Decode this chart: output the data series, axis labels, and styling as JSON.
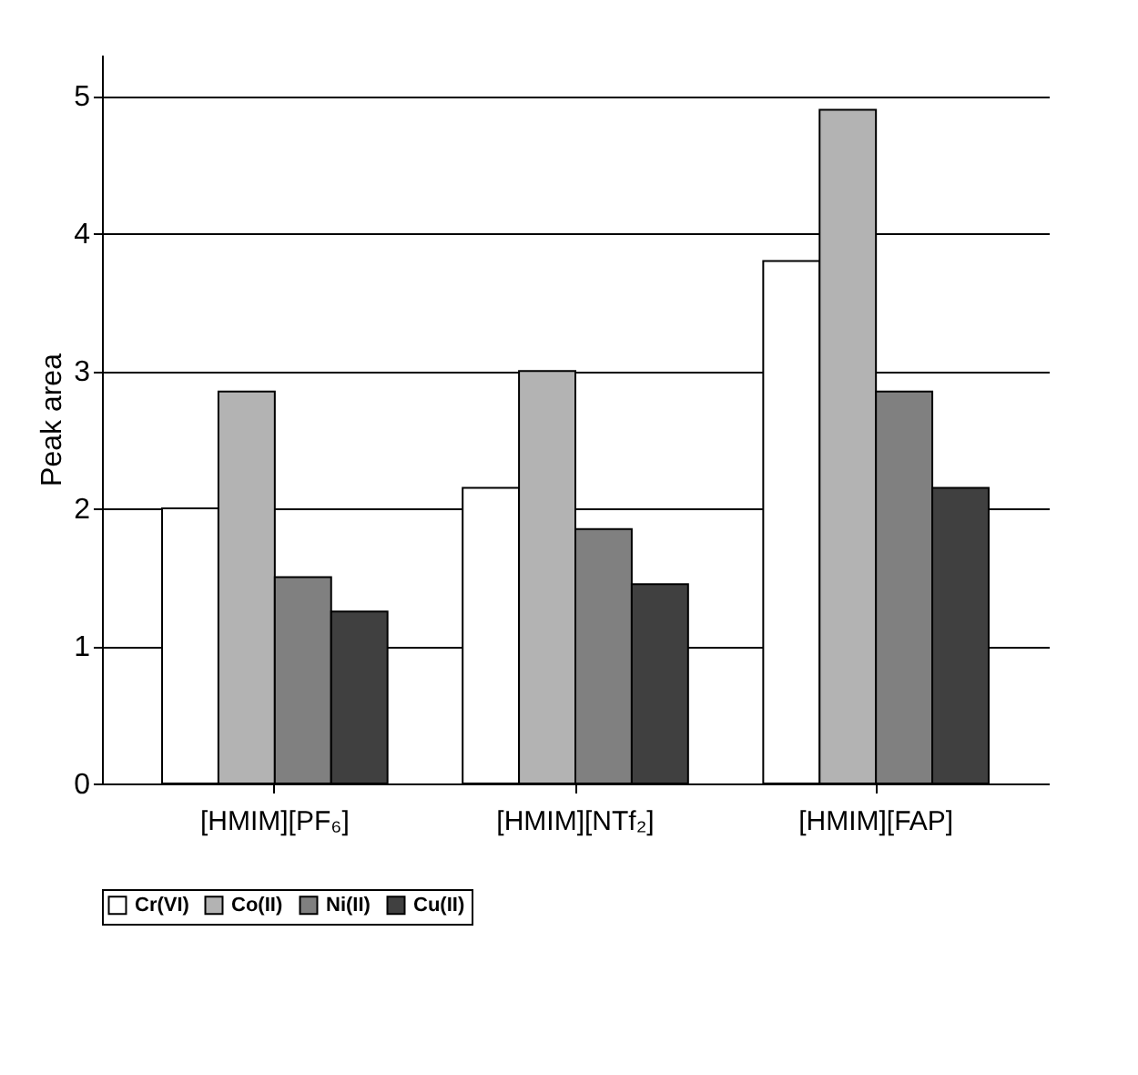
{
  "chart_data": {
    "type": "bar",
    "ylabel": "Peak area",
    "categories": [
      "[HMIM][PF₆]",
      "[HMIM][NTf₂]",
      "[HMIM][FAP]"
    ],
    "series": [
      {
        "name": "Cr(VI)",
        "color": "#ffffff",
        "values": [
          2.0,
          2.15,
          3.8
        ]
      },
      {
        "name": "Co(II)",
        "color": "#b3b3b3",
        "values": [
          2.85,
          3.0,
          4.9
        ]
      },
      {
        "name": "Ni(II)",
        "color": "#808080",
        "values": [
          1.5,
          1.85,
          2.85
        ]
      },
      {
        "name": "Cu(II)",
        "color": "#404040",
        "values": [
          1.25,
          1.45,
          2.15
        ]
      }
    ],
    "ylim": [
      0,
      5.3
    ],
    "yticks": [
      0,
      1,
      2,
      3,
      4,
      5
    ],
    "grid": "y",
    "legend": "bottom"
  }
}
